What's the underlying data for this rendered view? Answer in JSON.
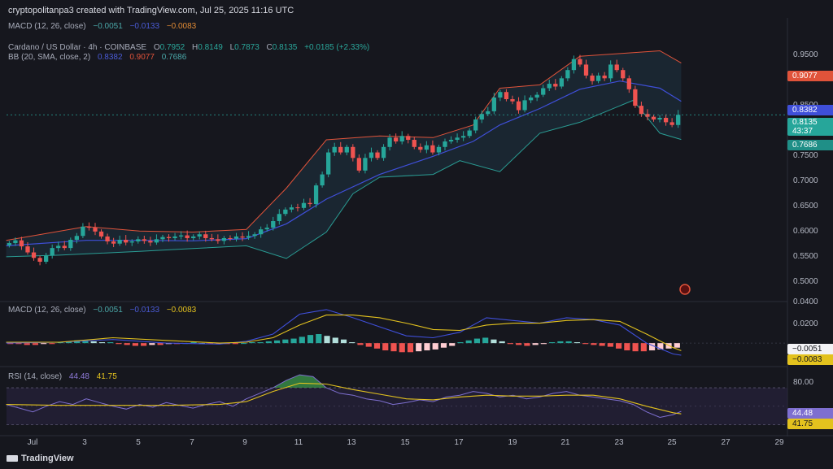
{
  "header": {
    "created": "cryptopolitanpa3 created with TradingView.com, Jul 25, 2025 11:16 UTC"
  },
  "legend": {
    "macd_top": {
      "label": "MACD (12, 26, close)",
      "v1": "−0.0051",
      "v2": "−0.0133",
      "v3": "−0.0083"
    },
    "symbol": {
      "label": "Cardano / US Dollar · 4h · COINBASE",
      "o": "0.7952",
      "h": "0.8149",
      "l": "0.7873",
      "c": "0.8135",
      "chg": "+0.0185 (+2.33%)"
    },
    "bb": {
      "label": "BB (20, SMA, close, 2)",
      "basis": "0.8382",
      "upper": "0.9077",
      "lower": "0.7686"
    },
    "macd": {
      "label": "MACD (12, 26, close)",
      "v1": "−0.0051",
      "v2": "−0.0133",
      "v3": "−0.0083"
    },
    "rsi": {
      "label": "RSI (14, close)",
      "v1": "44.48",
      "v2": "41.75"
    }
  },
  "badges": {
    "upper": "0.9077",
    "basis": "0.8382",
    "price": "0.8135",
    "countdown": "43:37",
    "lower": "0.7686",
    "macd1": "−0.0051",
    "macd2": "−0.0083",
    "rsi1": "44.48",
    "rsi2": "41.75"
  },
  "colors": {
    "bull": "#26a69a",
    "bear": "#ef5350",
    "upper": "#e0533a",
    "basis": "#3f4fd9",
    "lower": "#2a9d94",
    "signal": "#e3c21e",
    "rsi": "#7e6fd0",
    "background": "#16171e"
  },
  "footer": {
    "logo_text": "TradingView"
  },
  "chart_data": [
    {
      "type": "candlestick",
      "title": "Cardano / US Dollar · 4h · COINBASE",
      "x_ticks": [
        "Jul",
        "3",
        "5",
        "7",
        "9",
        "11",
        "13",
        "15",
        "17",
        "19",
        "21",
        "23",
        "25",
        "27",
        "29"
      ],
      "x_range_days": [
        0,
        29.5
      ],
      "y_ticks": [
        "0.9500",
        "0.8500",
        "0.7500",
        "0.7000",
        "0.6500",
        "0.6000",
        "0.5500",
        "0.5000"
      ],
      "ylim": [
        0.475,
        0.99
      ],
      "closes": [
        0.58,
        0.585,
        0.574,
        0.563,
        0.553,
        0.546,
        0.557,
        0.571,
        0.575,
        0.571,
        0.586,
        0.593,
        0.61,
        0.608,
        0.601,
        0.592,
        0.583,
        0.579,
        0.586,
        0.581,
        0.583,
        0.587,
        0.584,
        0.581,
        0.587,
        0.591,
        0.589,
        0.592,
        0.594,
        0.589,
        0.592,
        0.596,
        0.589,
        0.587,
        0.584,
        0.589,
        0.588,
        0.592,
        0.59,
        0.593,
        0.596,
        0.605,
        0.608,
        0.62,
        0.633,
        0.641,
        0.645,
        0.644,
        0.653,
        0.651,
        0.685,
        0.705,
        0.745,
        0.755,
        0.745,
        0.755,
        0.735,
        0.712,
        0.735,
        0.745,
        0.735,
        0.755,
        0.772,
        0.765,
        0.775,
        0.768,
        0.755,
        0.75,
        0.758,
        0.745,
        0.755,
        0.765,
        0.768,
        0.772,
        0.775,
        0.785,
        0.805,
        0.815,
        0.82,
        0.845,
        0.855,
        0.842,
        0.838,
        0.822,
        0.84,
        0.845,
        0.85,
        0.862,
        0.87,
        0.865,
        0.88,
        0.895,
        0.915,
        0.905,
        0.885,
        0.875,
        0.885,
        0.88,
        0.905,
        0.895,
        0.88,
        0.86,
        0.83,
        0.815,
        0.81,
        0.805,
        0.808,
        0.8,
        0.795,
        0.8135
      ],
      "bollinger_upper": [
        [
          0,
          0.585
        ],
        [
          3,
          0.61
        ],
        [
          5,
          0.602
        ],
        [
          7,
          0.6
        ],
        [
          9,
          0.605
        ],
        [
          10.5,
          0.68
        ],
        [
          12,
          0.768
        ],
        [
          14,
          0.775
        ],
        [
          16,
          0.772
        ],
        [
          17.5,
          0.795
        ],
        [
          18.5,
          0.862
        ],
        [
          20,
          0.868
        ],
        [
          21.5,
          0.92
        ],
        [
          23,
          0.925
        ],
        [
          24.5,
          0.93
        ],
        [
          25.3,
          0.908
        ]
      ],
      "bollinger_basis": [
        [
          0,
          0.575
        ],
        [
          3,
          0.585
        ],
        [
          5,
          0.585
        ],
        [
          7,
          0.584
        ],
        [
          9,
          0.588
        ],
        [
          10.5,
          0.615
        ],
        [
          12,
          0.66
        ],
        [
          14,
          0.705
        ],
        [
          16,
          0.738
        ],
        [
          17.5,
          0.765
        ],
        [
          18.5,
          0.795
        ],
        [
          20,
          0.825
        ],
        [
          21.5,
          0.86
        ],
        [
          23,
          0.875
        ],
        [
          24.5,
          0.862
        ],
        [
          25.3,
          0.8382
        ]
      ],
      "bollinger_lower": [
        [
          0,
          0.555
        ],
        [
          2,
          0.558
        ],
        [
          5,
          0.565
        ],
        [
          7,
          0.57
        ],
        [
          9,
          0.575
        ],
        [
          10.5,
          0.552
        ],
        [
          12,
          0.6
        ],
        [
          13,
          0.67
        ],
        [
          14,
          0.7
        ],
        [
          16,
          0.705
        ],
        [
          17,
          0.73
        ],
        [
          18.5,
          0.71
        ],
        [
          20,
          0.78
        ],
        [
          21.5,
          0.8
        ],
        [
          22.5,
          0.82
        ],
        [
          23.5,
          0.84
        ],
        [
          24.5,
          0.78
        ],
        [
          25.3,
          0.7686
        ]
      ]
    },
    {
      "type": "macd",
      "title": "MACD (12, 26, close)",
      "y_ticks": [
        "0.0400",
        "0.0200"
      ],
      "ylim": [
        -0.025,
        0.045
      ],
      "macd_line": [
        [
          0,
          0
        ],
        [
          2,
          0.001
        ],
        [
          4,
          0.004
        ],
        [
          6,
          0.0
        ],
        [
          8,
          -0.001
        ],
        [
          9,
          0.002
        ],
        [
          10,
          0.01
        ],
        [
          11,
          0.032
        ],
        [
          12,
          0.037
        ],
        [
          13,
          0.028
        ],
        [
          14,
          0.018
        ],
        [
          15,
          0.008
        ],
        [
          16,
          0.006
        ],
        [
          17,
          0.012
        ],
        [
          18,
          0.028
        ],
        [
          19,
          0.025
        ],
        [
          20,
          0.022
        ],
        [
          21,
          0.028
        ],
        [
          22,
          0.026
        ],
        [
          23,
          0.02
        ],
        [
          24,
          0.0
        ],
        [
          25,
          -0.012
        ],
        [
          25.3,
          -0.0133
        ]
      ],
      "signal_line": [
        [
          0,
          0.001
        ],
        [
          2,
          0.001
        ],
        [
          4,
          0.006
        ],
        [
          6,
          0.003
        ],
        [
          8,
          0.0
        ],
        [
          9,
          0.001
        ],
        [
          10,
          0.006
        ],
        [
          11,
          0.02
        ],
        [
          12,
          0.031
        ],
        [
          13,
          0.031
        ],
        [
          14,
          0.028
        ],
        [
          15,
          0.022
        ],
        [
          16,
          0.015
        ],
        [
          17,
          0.014
        ],
        [
          18,
          0.02
        ],
        [
          19,
          0.022
        ],
        [
          20,
          0.022
        ],
        [
          21,
          0.025
        ],
        [
          22,
          0.026
        ],
        [
          23,
          0.024
        ],
        [
          24,
          0.01
        ],
        [
          25,
          -0.005
        ],
        [
          25.3,
          -0.0083
        ]
      ],
      "histogram": [
        -0.001,
        -0.001,
        -0.002,
        -0.002,
        -0.001,
        -0.001,
        0.001,
        0.002,
        0.003,
        0.003,
        0.002,
        0.001,
        0.001,
        -0.001,
        -0.002,
        -0.003,
        -0.003,
        -0.002,
        -0.002,
        -0.001,
        -0.001,
        0.0,
        0.001,
        0.0,
        -0.001,
        -0.001,
        -0.001,
        -0.001,
        0.0,
        0.001,
        0.001,
        0.002,
        0.003,
        0.004,
        0.005,
        0.007,
        0.009,
        0.01,
        0.008,
        0.006,
        0.004,
        0.001,
        -0.002,
        -0.004,
        -0.006,
        -0.008,
        -0.009,
        -0.01,
        -0.01,
        -0.009,
        -0.008,
        -0.007,
        -0.005,
        -0.003,
        0.001,
        0.003,
        0.005,
        0.006,
        0.004,
        0.002,
        -0.001,
        -0.002,
        -0.003,
        -0.002,
        -0.001,
        0.001,
        0.002,
        0.002,
        0.001,
        -0.001,
        -0.002,
        -0.003,
        -0.004,
        -0.006,
        -0.008,
        -0.009,
        -0.009,
        -0.008,
        -0.007,
        -0.006,
        -0.005
      ]
    },
    {
      "type": "rsi",
      "title": "RSI (14, close)",
      "y_ticks": [
        "80.00"
      ],
      "ylim": [
        20,
        92
      ],
      "band": [
        30,
        70
      ],
      "rsi_line": [
        [
          0,
          52
        ],
        [
          0.5,
          48
        ],
        [
          1,
          44
        ],
        [
          1.5,
          50
        ],
        [
          2,
          55
        ],
        [
          2.5,
          52
        ],
        [
          3,
          58
        ],
        [
          3.5,
          54
        ],
        [
          4,
          50
        ],
        [
          4.5,
          47
        ],
        [
          5,
          52
        ],
        [
          5.5,
          49
        ],
        [
          6,
          54
        ],
        [
          6.5,
          51
        ],
        [
          7,
          48
        ],
        [
          7.5,
          52
        ],
        [
          8,
          55
        ],
        [
          8.5,
          50
        ],
        [
          9,
          58
        ],
        [
          9.5,
          64
        ],
        [
          10,
          70
        ],
        [
          10.5,
          78
        ],
        [
          11,
          84
        ],
        [
          11.5,
          82
        ],
        [
          12,
          70
        ],
        [
          12.5,
          64
        ],
        [
          13,
          62
        ],
        [
          13.5,
          58
        ],
        [
          14,
          56
        ],
        [
          14.5,
          52
        ],
        [
          15,
          54
        ],
        [
          15.5,
          57
        ],
        [
          16,
          55
        ],
        [
          16.5,
          60
        ],
        [
          17,
          62
        ],
        [
          17.5,
          66
        ],
        [
          18,
          64
        ],
        [
          18.5,
          60
        ],
        [
          19,
          62
        ],
        [
          19.5,
          58
        ],
        [
          20,
          60
        ],
        [
          20.5,
          64
        ],
        [
          21,
          66
        ],
        [
          21.5,
          62
        ],
        [
          22,
          60
        ],
        [
          22.5,
          58
        ],
        [
          23,
          56
        ],
        [
          23.5,
          52
        ],
        [
          24,
          44
        ],
        [
          24.5,
          38
        ],
        [
          25,
          41
        ],
        [
          25.3,
          44.48
        ]
      ],
      "signal_line": [
        [
          0,
          52
        ],
        [
          2,
          51
        ],
        [
          4,
          51
        ],
        [
          6,
          51
        ],
        [
          8,
          52
        ],
        [
          9,
          55
        ],
        [
          10,
          66
        ],
        [
          11,
          75
        ],
        [
          12,
          74
        ],
        [
          13,
          68
        ],
        [
          14,
          63
        ],
        [
          15,
          58
        ],
        [
          16,
          57
        ],
        [
          17,
          60
        ],
        [
          18,
          62
        ],
        [
          19,
          61
        ],
        [
          20,
          61
        ],
        [
          21,
          62
        ],
        [
          22,
          62
        ],
        [
          23,
          58
        ],
        [
          24,
          50
        ],
        [
          25,
          43
        ],
        [
          25.3,
          41.75
        ]
      ]
    }
  ]
}
